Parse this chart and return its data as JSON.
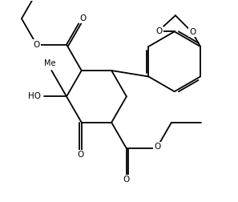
{
  "bg_color": "#ffffff",
  "line_color": "#000000",
  "lw": 1.3,
  "fs": 7.5,
  "figsize": [
    2.97,
    2.52
  ],
  "dpi": 100,
  "xlim": [
    -3.0,
    4.5
  ],
  "ylim": [
    -3.5,
    3.2
  ]
}
